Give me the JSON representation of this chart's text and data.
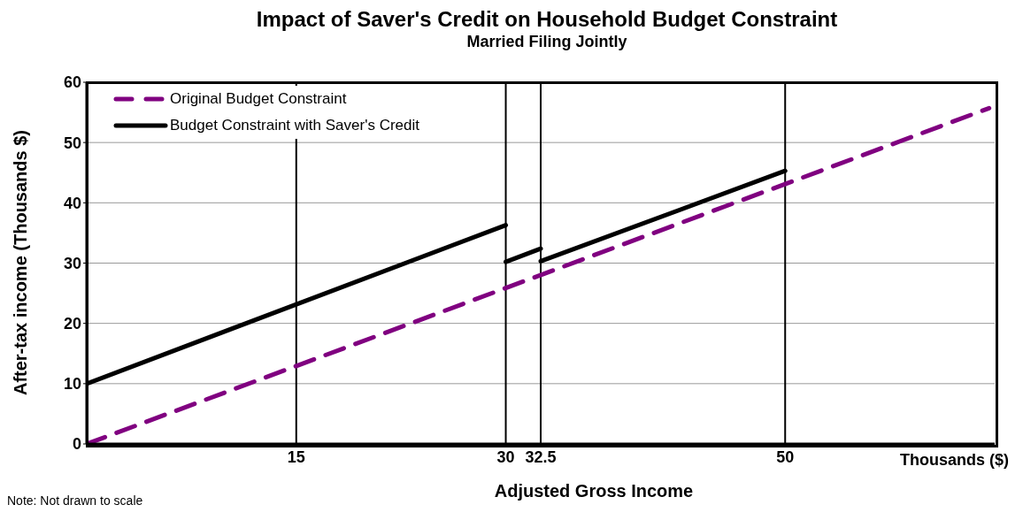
{
  "chart_data": {
    "type": "line",
    "title": "Impact of Saver's Credit on Household Budget Constraint",
    "subtitle": "Married Filing Jointly",
    "xlabel": "Adjusted Gross Income",
    "ylabel": "After-tax income (Thousands $)",
    "annotations": [
      "Thousands ($)",
      "Note: Not drawn to scale"
    ],
    "series": [
      {
        "name": "Original Budget Constraint",
        "color": "#800080",
        "line_style": "dashed",
        "x": [
          0,
          64.6
        ],
        "values": [
          0,
          55.7
        ]
      },
      {
        "name": "Budget Constraint with Saver's Credit",
        "color": "#000000",
        "line_style": "solid",
        "x": [
          0,
          30,
          null,
          30,
          32.5,
          null,
          32.5,
          50
        ],
        "values": [
          10,
          36.3,
          null,
          30.2,
          32.4,
          null,
          30.3,
          45.3
        ]
      }
    ],
    "xlim": [
      0,
      65
    ],
    "xticks": [
      15,
      30,
      32.5,
      50
    ],
    "ylim": [
      0,
      60
    ],
    "yticks": [
      0,
      10,
      20,
      30,
      40,
      50,
      60
    ],
    "ref_lines": [
      {
        "axis": "x",
        "value": 15,
        "color": "#000000"
      },
      {
        "axis": "x",
        "value": 30,
        "color": "#000000"
      },
      {
        "axis": "x",
        "value": 32.5,
        "color": "#000000"
      },
      {
        "axis": "x",
        "value": 50,
        "color": "#000000"
      }
    ],
    "grid": "y",
    "legend": "top left",
    "marker": "none"
  }
}
